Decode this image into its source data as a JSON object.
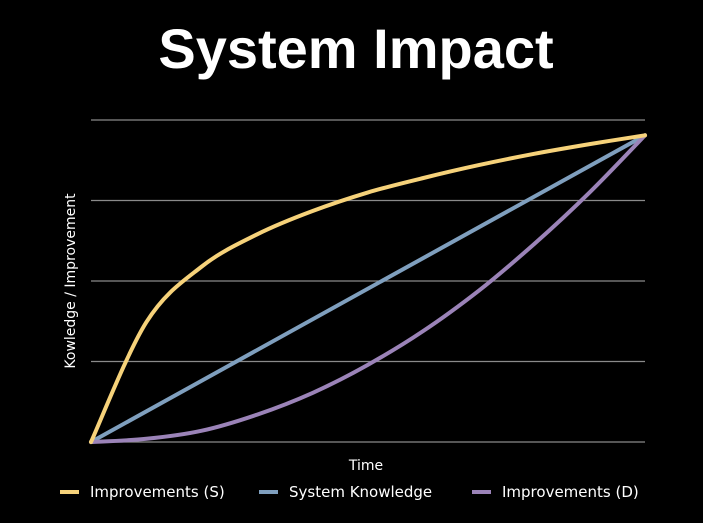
{
  "chart_data": {
    "type": "line",
    "title": "System Impact",
    "xlabel": "Time",
    "ylabel": "Kowledge / Improvement",
    "xlim": [
      0,
      10
    ],
    "ylim": [
      0,
      4
    ],
    "grid": true,
    "legend_position": "bottom",
    "x": [
      0,
      1,
      2,
      3,
      4,
      5,
      6,
      7,
      8,
      9,
      10
    ],
    "series": [
      {
        "name": "Improvements (S)",
        "color": "#f6d27a",
        "values": [
          0,
          1.49,
          2.18,
          2.58,
          2.87,
          3.1,
          3.28,
          3.44,
          3.58,
          3.7,
          3.81
        ]
      },
      {
        "name": "System Knowledge",
        "color": "#7f9fbe",
        "values": [
          0,
          0.38,
          0.76,
          1.14,
          1.52,
          1.9,
          2.28,
          2.66,
          3.04,
          3.42,
          3.81
        ]
      },
      {
        "name": "Improvements (D)",
        "color": "#9b83b8",
        "values": [
          0,
          0.04,
          0.14,
          0.34,
          0.61,
          0.96,
          1.38,
          1.88,
          2.46,
          3.1,
          3.81
        ]
      }
    ]
  }
}
